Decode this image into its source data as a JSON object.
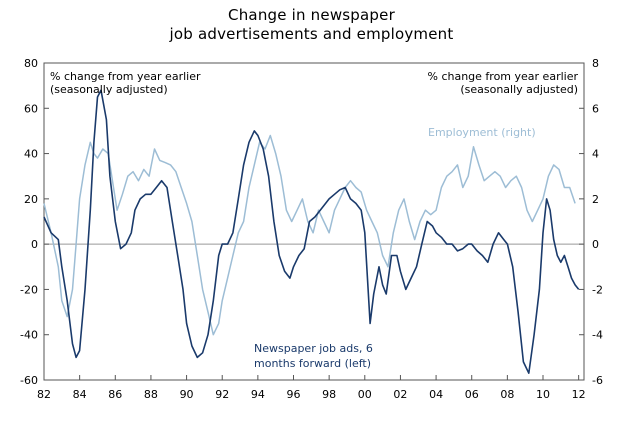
{
  "title_line1": "Change in newspaper",
  "title_line2": "job advertisements and employment",
  "chart_data": {
    "type": "line",
    "title": "Change in newspaper job advertisements and employment",
    "left_axis": {
      "label_line1": "% change from year earlier",
      "label_line2": "(seasonally adjusted)",
      "ylim": [
        -60,
        80
      ],
      "ticks": [
        80,
        60,
        40,
        20,
        0,
        -20,
        -40,
        -60
      ]
    },
    "right_axis": {
      "label_line1": "% change from year earlier",
      "label_line2": "(seasonally adjusted)",
      "ylim": [
        -6,
        8
      ],
      "ticks": [
        8,
        6,
        4,
        2,
        0,
        -2,
        -4,
        -6
      ]
    },
    "x_axis": {
      "xlim": [
        1982,
        2012.3
      ],
      "ticks": [
        1982,
        1984,
        1986,
        1988,
        1990,
        1992,
        1994,
        1996,
        1998,
        2000,
        2002,
        2004,
        2006,
        2008,
        2010,
        2012
      ],
      "tick_labels": [
        "82",
        "84",
        "86",
        "88",
        "90",
        "92",
        "94",
        "96",
        "98",
        "00",
        "02",
        "04",
        "06",
        "08",
        "10",
        "12"
      ]
    },
    "annotations": {
      "employment": "Employment (right)",
      "ads_line1": "Newspaper job ads, 6",
      "ads_line2": "months forward (left)"
    },
    "colors": {
      "ads": "#1a3a6b",
      "employment": "#9dbdd5",
      "axis": "#555555",
      "zero": "#999999"
    },
    "series": [
      {
        "name": "Newspaper job ads, 6 months forward",
        "axis": "left",
        "x": [
          1982.0,
          1982.4,
          1982.8,
          1983.0,
          1983.3,
          1983.6,
          1983.8,
          1984.0,
          1984.3,
          1984.6,
          1984.8,
          1985.0,
          1985.2,
          1985.5,
          1985.7,
          1986.0,
          1986.3,
          1986.6,
          1986.9,
          1987.1,
          1987.4,
          1987.7,
          1988.0,
          1988.3,
          1988.6,
          1988.9,
          1989.2,
          1989.5,
          1989.8,
          1990.0,
          1990.3,
          1990.6,
          1990.9,
          1991.2,
          1991.5,
          1991.8,
          1992.0,
          1992.3,
          1992.6,
          1992.9,
          1993.2,
          1993.5,
          1993.8,
          1994.0,
          1994.3,
          1994.6,
          1994.9,
          1995.2,
          1995.5,
          1995.8,
          1996.0,
          1996.3,
          1996.6,
          1996.9,
          1997.2,
          1997.5,
          1997.8,
          1998.0,
          1998.3,
          1998.6,
          1998.9,
          1999.2,
          1999.5,
          1999.8,
          2000.0,
          2000.3,
          2000.5,
          2000.8,
          2001.0,
          2001.2,
          2001.5,
          2001.8,
          2002.0,
          2002.3,
          2002.6,
          2002.9,
          2003.2,
          2003.5,
          2003.8,
          2004.0,
          2004.3,
          2004.6,
          2004.9,
          2005.2,
          2005.5,
          2005.8,
          2006.0,
          2006.3,
          2006.6,
          2006.9,
          2007.2,
          2007.5,
          2007.8,
          2008.0,
          2008.3,
          2008.6,
          2008.9,
          2009.2,
          2009.5,
          2009.8,
          2010.0,
          2010.2,
          2010.4,
          2010.6,
          2010.8,
          2011.0,
          2011.2,
          2011.4,
          2011.6,
          2011.8,
          2012.0
        ],
        "values": [
          12,
          5,
          2,
          -10,
          -25,
          -44,
          -50,
          -47,
          -20,
          15,
          45,
          65,
          68,
          55,
          30,
          10,
          -2,
          0,
          5,
          15,
          20,
          22,
          22,
          25,
          28,
          25,
          10,
          -5,
          -20,
          -35,
          -45,
          -50,
          -48,
          -40,
          -25,
          -5,
          0,
          0,
          5,
          20,
          35,
          45,
          50,
          48,
          42,
          30,
          10,
          -5,
          -12,
          -15,
          -10,
          -5,
          -2,
          10,
          12,
          15,
          18,
          20,
          22,
          24,
          25,
          20,
          18,
          15,
          5,
          -35,
          -22,
          -10,
          -18,
          -22,
          -5,
          -5,
          -12,
          -20,
          -15,
          -10,
          0,
          10,
          8,
          5,
          3,
          0,
          0,
          -3,
          -2,
          0,
          0,
          -3,
          -5,
          -8,
          0,
          5,
          2,
          0,
          -10,
          -30,
          -52,
          -57,
          -40,
          -20,
          5,
          20,
          15,
          2,
          -5,
          -8,
          -5,
          -10,
          -15,
          -18,
          -20
        ]
      },
      {
        "name": "Employment",
        "axis": "right",
        "x": [
          1982.0,
          1982.4,
          1982.8,
          1983.0,
          1983.3,
          1983.6,
          1983.8,
          1984.0,
          1984.3,
          1984.6,
          1984.8,
          1985.0,
          1985.3,
          1985.6,
          1985.9,
          1986.1,
          1986.4,
          1986.7,
          1987.0,
          1987.3,
          1987.6,
          1987.9,
          1988.2,
          1988.5,
          1988.8,
          1989.1,
          1989.4,
          1989.7,
          1990.0,
          1990.3,
          1990.6,
          1990.9,
          1991.2,
          1991.5,
          1991.8,
          1992.0,
          1992.3,
          1992.6,
          1992.9,
          1993.2,
          1993.5,
          1993.8,
          1994.1,
          1994.4,
          1994.7,
          1995.0,
          1995.3,
          1995.6,
          1995.9,
          1996.2,
          1996.5,
          1996.8,
          1997.1,
          1997.4,
          1997.7,
          1998.0,
          1998.3,
          1998.6,
          1998.9,
          1999.2,
          1999.5,
          1999.8,
          2000.1,
          2000.4,
          2000.7,
          2001.0,
          2001.3,
          2001.6,
          2001.9,
          2002.2,
          2002.5,
          2002.8,
          2003.1,
          2003.4,
          2003.7,
          2004.0,
          2004.3,
          2004.6,
          2004.9,
          2005.2,
          2005.5,
          2005.8,
          2006.1,
          2006.4,
          2006.7,
          2007.0,
          2007.3,
          2007.6,
          2007.9,
          2008.2,
          2008.5,
          2008.8,
          2009.1,
          2009.4,
          2009.7,
          2010.0,
          2010.3,
          2010.6,
          2010.9,
          2011.2,
          2011.5,
          2011.8
        ],
        "values": [
          1.8,
          0.5,
          -1.0,
          -2.5,
          -3.2,
          -2.0,
          0.0,
          2.0,
          3.5,
          4.5,
          4.0,
          3.8,
          4.2,
          4.0,
          2.5,
          1.5,
          2.2,
          3.0,
          3.2,
          2.8,
          3.3,
          3.0,
          4.2,
          3.7,
          3.6,
          3.5,
          3.2,
          2.5,
          1.8,
          1.0,
          -0.5,
          -2.0,
          -3.0,
          -4.0,
          -3.5,
          -2.5,
          -1.5,
          -0.5,
          0.5,
          1.0,
          2.5,
          3.5,
          4.5,
          4.2,
          4.8,
          4.0,
          3.0,
          1.5,
          1.0,
          1.5,
          2.0,
          1.0,
          0.5,
          1.5,
          1.0,
          0.5,
          1.5,
          2.0,
          2.5,
          2.8,
          2.5,
          2.3,
          1.5,
          1.0,
          0.5,
          -0.5,
          -1.0,
          0.5,
          1.5,
          2.0,
          1.0,
          0.2,
          1.0,
          1.5,
          1.3,
          1.5,
          2.5,
          3.0,
          3.2,
          3.5,
          2.5,
          3.0,
          4.3,
          3.5,
          2.8,
          3.0,
          3.2,
          3.0,
          2.5,
          2.8,
          3.0,
          2.5,
          1.5,
          1.0,
          1.5,
          2.0,
          3.0,
          3.5,
          3.3,
          2.5,
          2.5,
          1.8
        ]
      }
    ]
  }
}
